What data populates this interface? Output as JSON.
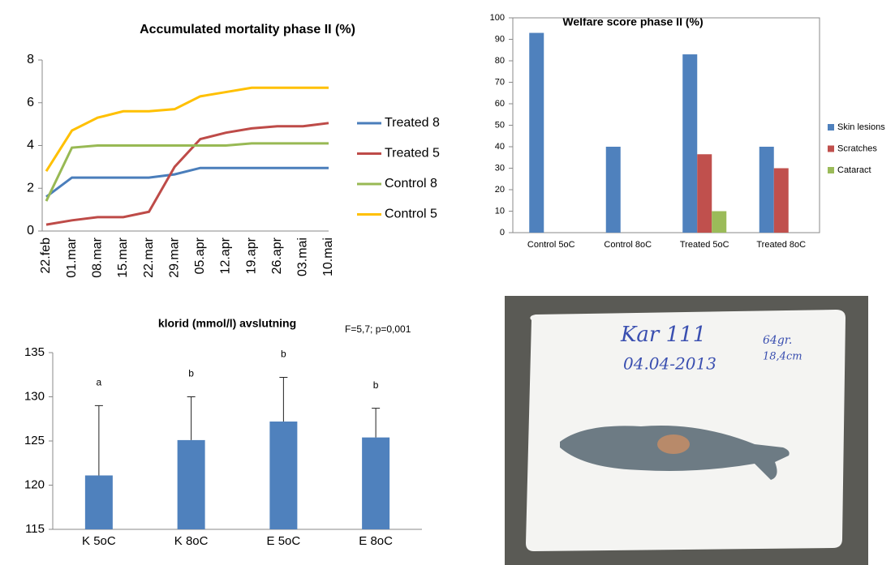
{
  "chart_data": [
    {
      "type": "line",
      "title": "Accumulated mortality phase II (%)",
      "categories": [
        "22.feb",
        "01.mar",
        "08.mar",
        "15.mar",
        "22.mar",
        "29.mar",
        "05.apr",
        "12.apr",
        "19.apr",
        "26.apr",
        "03.mai",
        "10.mai"
      ],
      "series": [
        {
          "name": "Treated 8",
          "color": "#4a7ebb",
          "values": [
            1.6,
            2.5,
            2.5,
            2.5,
            2.5,
            2.65,
            2.95,
            2.95,
            2.95,
            2.95,
            2.95,
            2.95
          ]
        },
        {
          "name": "Treated 5",
          "color": "#be4b48",
          "values": [
            0.3,
            0.5,
            0.65,
            0.65,
            0.9,
            3.0,
            4.3,
            4.6,
            4.8,
            4.9,
            4.9,
            5.05
          ]
        },
        {
          "name": "Control 8",
          "color": "#98b954",
          "values": [
            1.4,
            3.9,
            4.0,
            4.0,
            4.0,
            4.0,
            4.0,
            4.0,
            4.1,
            4.1,
            4.1,
            4.1
          ]
        },
        {
          "name": "Control 5",
          "color": "#ffc000",
          "values": [
            2.8,
            4.7,
            5.3,
            5.6,
            5.6,
            5.7,
            6.3,
            6.5,
            6.7,
            6.7,
            6.7,
            6.7
          ]
        }
      ],
      "ylim": [
        0,
        8
      ],
      "yticks": [
        0,
        2,
        4,
        6,
        8
      ],
      "grid": false,
      "legend": "right"
    },
    {
      "type": "bar",
      "title": "Welfare score phase II (%)",
      "categories": [
        "Control 5oC",
        "Control 8oC",
        "Treated 5oC",
        "Treated 8oC"
      ],
      "series": [
        {
          "name": "Skin lesions",
          "color": "#4f81bd",
          "values": [
            93,
            40,
            83,
            40
          ]
        },
        {
          "name": "Scratches",
          "color": "#c0504d",
          "values": [
            0,
            0,
            36.5,
            30
          ]
        },
        {
          "name": "Cataract",
          "color": "#9bbb59",
          "values": [
            0,
            0,
            10,
            0
          ]
        }
      ],
      "ylim": [
        0,
        100
      ],
      "yticks": [
        0,
        10,
        20,
        30,
        40,
        50,
        60,
        70,
        80,
        90,
        100
      ],
      "grid": false,
      "legend": "right"
    },
    {
      "type": "bar",
      "title": "klorid (mmol/l) avslutning",
      "annotation": "F=5,7; p=0,001",
      "categories": [
        "K 5oC",
        "K 8oC",
        "E 5oC",
        "E 8oC"
      ],
      "values": [
        121.1,
        125.1,
        127.2,
        125.4
      ],
      "errors": [
        7.9,
        4.9,
        5.0,
        3.3
      ],
      "letters": [
        "a",
        "b",
        "b",
        "b"
      ],
      "color": "#4f81bd",
      "ylim": [
        115,
        135
      ],
      "yticks": [
        115,
        120,
        125,
        130,
        135
      ],
      "grid": false
    }
  ],
  "photo": {
    "card_lines": [
      "Kar 111",
      "04.04-2013",
      "64gr.",
      "18,4cm"
    ]
  }
}
